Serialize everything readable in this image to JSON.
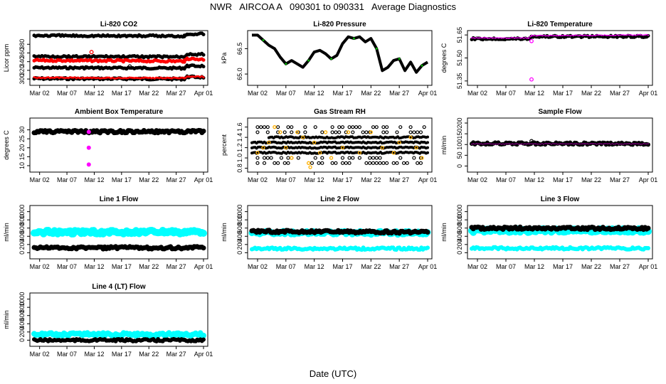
{
  "page": {
    "title": "NWR   AIRCOA A   090301 to 090331   Average Diagnostics",
    "xlabel": "Date (UTC)"
  },
  "colors": {
    "black": "#000000",
    "red": "#ff0000",
    "magenta": "#ff00ff",
    "green": "#00b000",
    "orange": "#ffb000",
    "cyan": "#00ffff",
    "blue": "#0000ff",
    "purple": "#800080"
  },
  "chart_data": [
    {
      "id": "co2",
      "type": "scatter",
      "title": "Li-820 CO2",
      "ylabel": "Licor ppm",
      "xlabels": [
        "Mar 02",
        "Mar 07",
        "Mar 12",
        "Mar 17",
        "Mar 22",
        "Mar 27",
        "Apr 01"
      ],
      "xlim": [
        0,
        31
      ],
      "ylim": [
        292,
        405
      ],
      "yticks": [
        "300",
        "320",
        "340",
        "360",
        "380"
      ],
      "series": [
        {
          "name": "ref-high",
          "color": "#000000",
          "values": [
            [
              0,
              400
            ],
            [
              27.5,
              399
            ],
            [
              28,
              404
            ],
            [
              31,
              404
            ]
          ],
          "width": 5
        },
        {
          "name": "ref-upper",
          "color": "#000000",
          "values": [
            [
              0,
              352
            ],
            [
              27.5,
              351
            ],
            [
              28,
              357
            ],
            [
              31,
              357
            ]
          ],
          "width": 5
        },
        {
          "name": "sample",
          "color": "#ff0000",
          "values": [
            [
              0,
              343
            ],
            [
              27.5,
              341
            ],
            [
              28,
              347
            ],
            [
              31,
              345
            ]
          ],
          "width": 5
        },
        {
          "name": "ref-mid",
          "color": "#000000",
          "values": [
            [
              0,
              326
            ],
            [
              27.5,
              325
            ],
            [
              28,
              330
            ],
            [
              31,
              330
            ]
          ],
          "width": 5
        },
        {
          "name": "ref-low",
          "color": "#000000",
          "values": [
            [
              0,
              301
            ],
            [
              27.5,
              300
            ],
            [
              28,
              305
            ],
            [
              31,
              304
            ]
          ],
          "width": 5
        },
        {
          "name": "sample-low",
          "color": "#ff0000",
          "values": [
            [
              0,
              303
            ],
            [
              27.5,
              302
            ],
            [
              28,
              306
            ],
            [
              31,
              305
            ]
          ],
          "width": 3
        }
      ],
      "outliers": [
        {
          "x": 10.5,
          "y": 362,
          "color": "#ff0000"
        },
        {
          "x": 9.5,
          "y": 327,
          "color": "#000000"
        },
        {
          "x": 17.5,
          "y": 329,
          "color": "#000000"
        }
      ]
    },
    {
      "id": "pressure",
      "type": "line",
      "title": "Li-820 Pressure",
      "ylabel": "kPa",
      "xlabels": [
        "Mar 02",
        "Mar 07",
        "Mar 12",
        "Mar 17",
        "Mar 22",
        "Mar 27",
        "Apr 01"
      ],
      "xlim": [
        0,
        31
      ],
      "ylim": [
        64.5,
        67.4
      ],
      "yticks": [
        "65.0",
        "66.5"
      ],
      "ytick_values": [
        65.0,
        66.5
      ],
      "series": [
        {
          "name": "pressure",
          "color": "#000000",
          "width": 4,
          "values": [
            [
              0,
              67.3
            ],
            [
              1,
              67.3
            ],
            [
              2,
              67.0
            ],
            [
              3,
              66.7
            ],
            [
              4,
              66.5
            ],
            [
              5,
              66.0
            ],
            [
              6,
              65.6
            ],
            [
              7,
              65.8
            ],
            [
              8,
              65.6
            ],
            [
              9,
              65.4
            ],
            [
              10,
              65.8
            ],
            [
              11,
              66.3
            ],
            [
              12,
              66.4
            ],
            [
              13,
              66.2
            ],
            [
              14,
              65.9
            ],
            [
              15,
              66.1
            ],
            [
              16,
              66.8
            ],
            [
              17,
              67.2
            ],
            [
              18,
              67.1
            ],
            [
              19,
              67.2
            ],
            [
              20,
              66.9
            ],
            [
              21,
              67.1
            ],
            [
              22,
              66.5
            ],
            [
              23,
              65.2
            ],
            [
              24,
              65.4
            ],
            [
              25,
              65.8
            ],
            [
              26,
              65.9
            ],
            [
              27,
              65.2
            ],
            [
              28,
              65.7
            ],
            [
              29,
              65.1
            ],
            [
              30,
              65.5
            ],
            [
              31,
              65.7
            ]
          ]
        }
      ]
    },
    {
      "id": "licor-temp",
      "type": "scatter",
      "title": "Li-820 Temperature",
      "ylabel": "degrees C",
      "xlabels": [
        "Mar 02",
        "Mar 07",
        "Mar 12",
        "Mar 17",
        "Mar 22",
        "Mar 27",
        "Apr 01"
      ],
      "xlim": [
        0,
        31
      ],
      "ylim": [
        51.34,
        51.66
      ],
      "yticks": [
        "51.35",
        "51.50",
        "51.65"
      ],
      "ytick_values": [
        51.35,
        51.5,
        51.65
      ],
      "series": [
        {
          "name": "temp",
          "color": "#000000",
          "width": 5,
          "values": [
            [
              0,
              51.625
            ],
            [
              10,
              51.625
            ],
            [
              10.5,
              51.64
            ],
            [
              31,
              51.64
            ]
          ]
        },
        {
          "name": "temp-set",
          "color": "#ff00ff",
          "width": 2,
          "values": [
            [
              0,
              51.63
            ],
            [
              10,
              51.63
            ],
            [
              10.5,
              51.645
            ],
            [
              31,
              51.65
            ]
          ]
        }
      ],
      "outliers": [
        {
          "x": 10.5,
          "y": 51.61,
          "color": "#ff00ff"
        },
        {
          "x": 10.5,
          "y": 51.36,
          "color": "#ff00ff"
        }
      ]
    },
    {
      "id": "box-temp",
      "type": "scatter",
      "title": "Ambient Box Temperature",
      "ylabel": "degrees C",
      "xlabels": [
        "Mar 02",
        "Mar 07",
        "Mar 12",
        "Mar 17",
        "Mar 22",
        "Mar 27",
        "Apr 01"
      ],
      "xlim": [
        0,
        31
      ],
      "ylim": [
        8,
        35
      ],
      "yticks": [
        "10",
        "15",
        "20",
        "25",
        "30"
      ],
      "ytick_values": [
        10,
        15,
        20,
        25,
        30
      ],
      "series": [
        {
          "name": "box",
          "color": "#000000",
          "width": 7,
          "values": [
            [
              0,
              29
            ],
            [
              31,
              29
            ]
          ]
        },
        {
          "name": "spike",
          "color": "#ff00ff",
          "width": 6,
          "values": [
            [
              10,
              29
            ],
            [
              10,
              11
            ]
          ]
        }
      ]
    },
    {
      "id": "rh",
      "type": "scatter",
      "title": "Gas Stream RH",
      "ylabel": "percent",
      "xlabels": [
        "Mar 02",
        "Mar 07",
        "Mar 12",
        "Mar 17",
        "Mar 22",
        "Mar 27",
        "Apr 01"
      ],
      "xlim": [
        0,
        31
      ],
      "ylim": [
        0.78,
        1.72
      ],
      "yticks": [
        "0.8",
        "1.0",
        "1.2",
        "1.4",
        "1.6"
      ],
      "ytick_values": [
        0.8,
        1.0,
        1.2,
        1.4,
        1.6
      ],
      "series": [
        {
          "name": "rh-a",
          "color": "#000000",
          "width": 4,
          "values": [
            [
              0,
              1.3
            ],
            [
              31,
              1.3
            ]
          ]
        },
        {
          "name": "rh-b",
          "color": "#000000",
          "width": 4,
          "values": [
            [
              0,
              1.2
            ],
            [
              31,
              1.2
            ]
          ]
        },
        {
          "name": "rh-c",
          "color": "#000000",
          "width": 4,
          "values": [
            [
              3,
              1.4
            ],
            [
              31,
              1.4
            ]
          ]
        },
        {
          "name": "rh-d",
          "color": "#000000",
          "width": 4,
          "values": [
            [
              0,
              1.1
            ],
            [
              31,
              1.1
            ]
          ]
        }
      ],
      "scatter_levels": [
        0.9,
        1.0,
        1.5,
        1.6
      ],
      "orange_points": [
        [
          1,
          1.1
        ],
        [
          2,
          1.2
        ],
        [
          3,
          1.3
        ],
        [
          4,
          1.6
        ],
        [
          5,
          1.5
        ],
        [
          6,
          1.2
        ],
        [
          7,
          1.0
        ],
        [
          8,
          1.5
        ],
        [
          9,
          1.4
        ],
        [
          10,
          0.9
        ],
        [
          10.3,
          0.82
        ],
        [
          11,
          1.3
        ],
        [
          12,
          1.1
        ],
        [
          13,
          1.5
        ],
        [
          14,
          1.0
        ],
        [
          16,
          1.2
        ],
        [
          17,
          1.5
        ],
        [
          19,
          1.1
        ],
        [
          21,
          1.5
        ],
        [
          23,
          1.2
        ],
        [
          25,
          1.1
        ],
        [
          26,
          1.3
        ],
        [
          28,
          1.4
        ],
        [
          29,
          1.2
        ],
        [
          30,
          1.0
        ]
      ]
    },
    {
      "id": "sample-flow",
      "type": "scatter",
      "title": "Sample Flow",
      "ylabel": "ml/min",
      "xlabels": [
        "Mar 02",
        "Mar 07",
        "Mar 12",
        "Mar 17",
        "Mar 22",
        "Mar 27",
        "Apr 01"
      ],
      "xlim": [
        0,
        31
      ],
      "ylim": [
        -15,
        210
      ],
      "yticks": [
        "0",
        "50",
        "100",
        "150",
        "200"
      ],
      "ytick_values": [
        0,
        50,
        100,
        150,
        200
      ],
      "series": [
        {
          "name": "flow",
          "color": "#000000",
          "width": 6,
          "values": [
            [
              0,
              105
            ],
            [
              31,
              104
            ]
          ]
        },
        {
          "name": "flow-set",
          "color": "#800080",
          "width": 2,
          "values": [
            [
              0,
              103
            ],
            [
              31,
              103
            ]
          ]
        }
      ],
      "outliers": [
        {
          "x": 10.5,
          "y": 116,
          "color": "#000000"
        }
      ]
    },
    {
      "id": "line1",
      "type": "scatter",
      "title": "Line 1 Flow",
      "ylabel": "ml/min",
      "xlabels": [
        "Mar 02",
        "Mar 07",
        "Mar 12",
        "Mar 17",
        "Mar 22",
        "Mar 27",
        "Apr 01"
      ],
      "xlim": [
        0,
        31
      ],
      "ylim": [
        -80,
        1080
      ],
      "yticks": [
        "0",
        "200",
        "400",
        "600",
        "800",
        "1000"
      ],
      "ytick_values": [
        0,
        200,
        400,
        600,
        800,
        1000
      ],
      "series": [
        {
          "name": "cyan-band",
          "color": "#00ffff",
          "width": 10,
          "values": [
            [
              0,
              500
            ],
            [
              31,
              500
            ]
          ]
        },
        {
          "name": "black",
          "color": "#000000",
          "width": 7,
          "values": [
            [
              0,
              120
            ],
            [
              31,
              120
            ]
          ]
        }
      ]
    },
    {
      "id": "line2",
      "type": "scatter",
      "title": "Line 2 Flow",
      "ylabel": "ml/min",
      "xlabels": [
        "Mar 02",
        "Mar 07",
        "Mar 12",
        "Mar 17",
        "Mar 22",
        "Mar 27",
        "Apr 01"
      ],
      "xlim": [
        0,
        31
      ],
      "ylim": [
        -80,
        1080
      ],
      "yticks": [
        "0",
        "200",
        "400",
        "600",
        "800",
        "1000"
      ],
      "ytick_values": [
        0,
        200,
        400,
        600,
        800,
        1000
      ],
      "series": [
        {
          "name": "cyan-band",
          "color": "#00ffff",
          "width": 9,
          "values": [
            [
              0,
              490
            ],
            [
              31,
              480
            ]
          ]
        },
        {
          "name": "black",
          "color": "#000000",
          "width": 7,
          "values": [
            [
              0,
              520
            ],
            [
              31,
              500
            ]
          ]
        },
        {
          "name": "cyan-low",
          "color": "#00ffff",
          "width": 6,
          "values": [
            [
              0,
              100
            ],
            [
              31,
              100
            ]
          ]
        }
      ]
    },
    {
      "id": "line3",
      "type": "scatter",
      "title": "Line 3 Flow",
      "ylabel": "ml/min",
      "xlabels": [
        "Mar 02",
        "Mar 07",
        "Mar 12",
        "Mar 17",
        "Mar 22",
        "Mar 27",
        "Apr 01"
      ],
      "xlim": [
        0,
        31
      ],
      "ylim": [
        -80,
        1080
      ],
      "yticks": [
        "0",
        "200",
        "400",
        "600",
        "800",
        "1000"
      ],
      "ytick_values": [
        0,
        200,
        400,
        600,
        800,
        1000
      ],
      "series": [
        {
          "name": "cyan-band",
          "color": "#00ffff",
          "width": 10,
          "values": [
            [
              0,
              540
            ],
            [
              31,
              540
            ]
          ]
        },
        {
          "name": "black",
          "color": "#000000",
          "width": 7,
          "values": [
            [
              0,
              600
            ],
            [
              31,
              590
            ]
          ]
        },
        {
          "name": "cyan-low",
          "color": "#00ffff",
          "width": 6,
          "values": [
            [
              0,
              110
            ],
            [
              31,
              105
            ]
          ]
        }
      ]
    },
    {
      "id": "line4",
      "type": "scatter",
      "title": "Line 4 (LT) Flow",
      "ylabel": "ml/min",
      "xlabels": [
        "Mar 02",
        "Mar 07",
        "Mar 12",
        "Mar 17",
        "Mar 22",
        "Mar 27",
        "Apr 01"
      ],
      "xlim": [
        0,
        31
      ],
      "ylim": [
        -80,
        1080
      ],
      "yticks": [
        "0",
        "200",
        "400",
        "600",
        "800",
        "1000"
      ],
      "ytick_values": [
        0,
        200,
        400,
        600,
        800,
        1000
      ],
      "series": [
        {
          "name": "cyan",
          "color": "#00ffff",
          "width": 8,
          "values": [
            [
              0,
              140
            ],
            [
              31,
              140
            ]
          ]
        },
        {
          "name": "black",
          "color": "#000000",
          "width": 6,
          "values": [
            [
              0,
              0
            ],
            [
              31,
              0
            ]
          ]
        }
      ]
    }
  ]
}
